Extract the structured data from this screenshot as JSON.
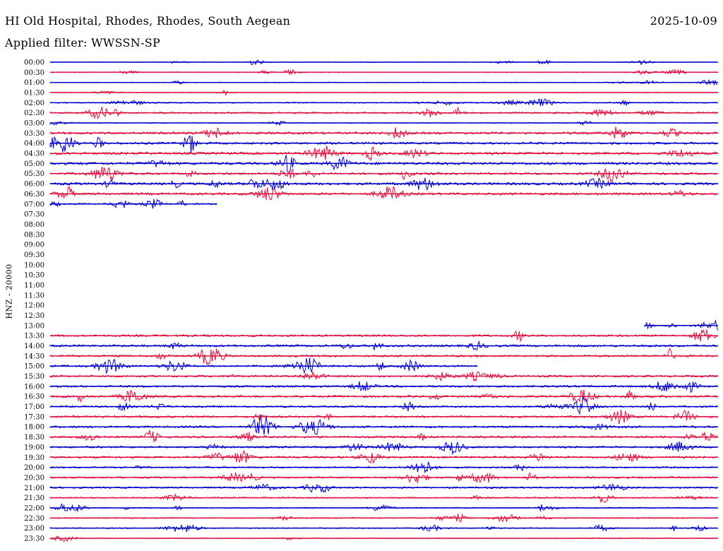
{
  "header": {
    "station": "HI Old Hospital, Rhodes, Rhodes, South Aegean",
    "date": "2025-10-09",
    "filter": "Applied filter: WWSSN-SP"
  },
  "chart_data": {
    "type": "line",
    "ylabel": "HNZ - 20000",
    "colors": {
      "odd_row": "#0000cc",
      "even_row": "#e01040"
    },
    "rows": [
      {
        "label": "00:00",
        "start": 0.0,
        "end": 1.0,
        "amp": 1.0
      },
      {
        "label": "00:30",
        "start": 0.0,
        "end": 1.0,
        "amp": 1.1
      },
      {
        "label": "01:00",
        "start": 0.0,
        "end": 1.0,
        "amp": 1.0
      },
      {
        "label": "01:30",
        "start": 0.0,
        "end": 1.0,
        "amp": 1.3
      },
      {
        "label": "02:00",
        "start": 0.0,
        "end": 1.0,
        "amp": 1.6
      },
      {
        "label": "02:30",
        "start": 0.0,
        "end": 1.0,
        "amp": 2.2
      },
      {
        "label": "03:00",
        "start": 0.0,
        "end": 1.0,
        "amp": 1.2
      },
      {
        "label": "03:30",
        "start": 0.0,
        "end": 1.0,
        "amp": 3.2
      },
      {
        "label": "04:00",
        "start": 0.0,
        "end": 1.0,
        "amp": 3.0
      },
      {
        "label": "04:30",
        "start": 0.0,
        "end": 1.0,
        "amp": 3.4
      },
      {
        "label": "05:00",
        "start": 0.0,
        "end": 1.0,
        "amp": 3.6
      },
      {
        "label": "05:30",
        "start": 0.0,
        "end": 1.0,
        "amp": 3.2
      },
      {
        "label": "06:00",
        "start": 0.0,
        "end": 1.0,
        "amp": 3.4
      },
      {
        "label": "06:30",
        "start": 0.0,
        "end": 1.0,
        "amp": 3.2
      },
      {
        "label": "07:00",
        "start": 0.0,
        "end": 0.25,
        "amp": 2.0
      },
      {
        "label": "07:30",
        "start": 0,
        "end": 0,
        "amp": 0
      },
      {
        "label": "08:00",
        "start": 0,
        "end": 0,
        "amp": 0
      },
      {
        "label": "08:30",
        "start": 0,
        "end": 0,
        "amp": 0
      },
      {
        "label": "09:00",
        "start": 0,
        "end": 0,
        "amp": 0
      },
      {
        "label": "09:30",
        "start": 0,
        "end": 0,
        "amp": 0
      },
      {
        "label": "10:00",
        "start": 0,
        "end": 0,
        "amp": 0
      },
      {
        "label": "10:30",
        "start": 0,
        "end": 0,
        "amp": 0
      },
      {
        "label": "11:00",
        "start": 0,
        "end": 0,
        "amp": 0
      },
      {
        "label": "11:30",
        "start": 0,
        "end": 0,
        "amp": 0
      },
      {
        "label": "12:00",
        "start": 0,
        "end": 0,
        "amp": 0
      },
      {
        "label": "12:30",
        "start": 0,
        "end": 0,
        "amp": 0
      },
      {
        "label": "13:00",
        "start": 0.89,
        "end": 1.0,
        "amp": 1.4
      },
      {
        "label": "13:30",
        "start": 0.0,
        "end": 1.0,
        "amp": 2.8
      },
      {
        "label": "14:00",
        "start": 0.0,
        "end": 1.0,
        "amp": 3.0
      },
      {
        "label": "14:30",
        "start": 0.0,
        "end": 1.0,
        "amp": 2.8
      },
      {
        "label": "15:00",
        "start": 0.0,
        "end": 0.64,
        "amp": 2.6
      },
      {
        "label": "15:30",
        "start": 0.0,
        "end": 1.0,
        "amp": 2.6
      },
      {
        "label": "16:00",
        "start": 0.0,
        "end": 1.0,
        "amp": 2.8
      },
      {
        "label": "16:30",
        "start": 0.0,
        "end": 1.0,
        "amp": 3.0
      },
      {
        "label": "17:00",
        "start": 0.0,
        "end": 1.0,
        "amp": 2.4
      },
      {
        "label": "17:30",
        "start": 0.0,
        "end": 1.0,
        "amp": 2.8
      },
      {
        "label": "18:00",
        "start": 0.0,
        "end": 1.0,
        "amp": 2.8
      },
      {
        "label": "18:30",
        "start": 0.0,
        "end": 1.0,
        "amp": 2.8
      },
      {
        "label": "19:00",
        "start": 0.0,
        "end": 1.0,
        "amp": 2.6
      },
      {
        "label": "19:30",
        "start": 0.0,
        "end": 1.0,
        "amp": 2.8
      },
      {
        "label": "20:00",
        "start": 0.0,
        "end": 1.0,
        "amp": 2.2
      },
      {
        "label": "20:30",
        "start": 0.0,
        "end": 1.0,
        "amp": 2.4
      },
      {
        "label": "21:00",
        "start": 0.0,
        "end": 1.0,
        "amp": 2.4
      },
      {
        "label": "21:30",
        "start": 0.0,
        "end": 1.0,
        "amp": 1.8
      },
      {
        "label": "22:00",
        "start": 0.0,
        "end": 1.0,
        "amp": 1.6
      },
      {
        "label": "22:30",
        "start": 0.0,
        "end": 1.0,
        "amp": 1.6
      },
      {
        "label": "23:00",
        "start": 0.0,
        "end": 1.0,
        "amp": 1.4
      },
      {
        "label": "23:30",
        "start": 0.0,
        "end": 1.0,
        "amp": 1.2
      }
    ]
  }
}
